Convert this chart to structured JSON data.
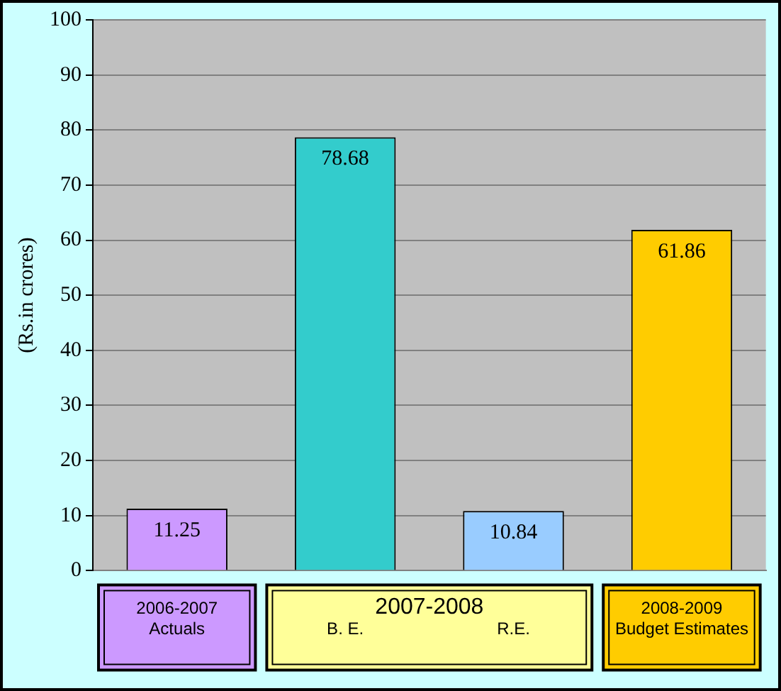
{
  "chart_data": {
    "type": "bar",
    "ylabel": "(Rs.in crores)",
    "categories": [
      "2006-2007\nActuals",
      "B. E.",
      "R.E.",
      "2008-2009\nBudget Estimates"
    ],
    "values": [
      11.25,
      78.68,
      10.84,
      61.86
    ],
    "colors": [
      "#cc99ff",
      "#33cccc",
      "#99ccff",
      "#ffcc00"
    ],
    "ylim": [
      0,
      100
    ],
    "yticks": [
      0,
      10,
      20,
      30,
      40,
      50,
      60,
      70,
      80,
      90,
      100
    ],
    "grid": "y",
    "data_labels": true,
    "annotations": [
      "2007-2008"
    ]
  }
}
